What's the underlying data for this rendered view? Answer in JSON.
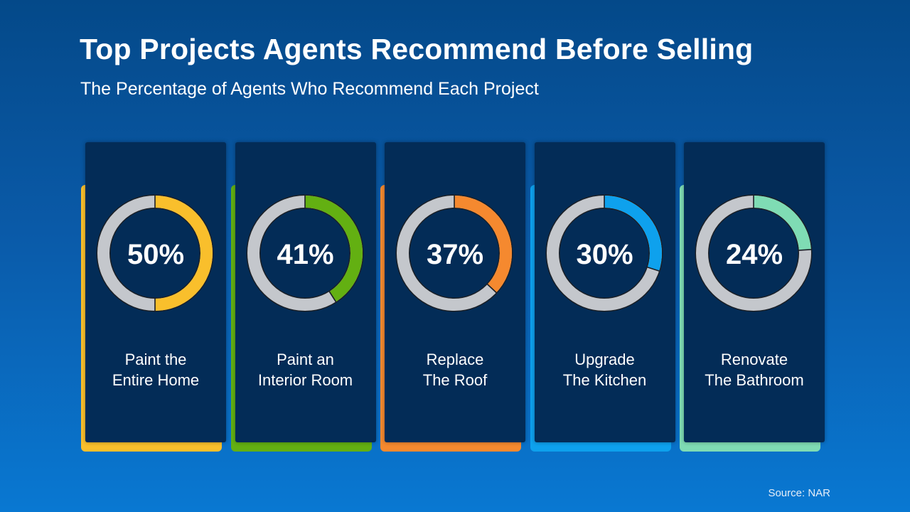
{
  "title": "Top Projects Agents Recommend Before Selling",
  "subtitle": "The Percentage of Agents Who Recommend Each Project",
  "source": "Source: NAR",
  "colors": {
    "track": "#c4c7cc",
    "panel": "#032c57"
  },
  "chart_data": {
    "type": "pie",
    "title": "Top Projects Agents Recommend Before Selling",
    "subtitle": "The Percentage of Agents Who Recommend Each Project",
    "unit": "%",
    "items": [
      {
        "label_line1": "Paint the",
        "label_line2": "Entire Home",
        "value": 50,
        "display": "50%",
        "color": "#f9bf2c"
      },
      {
        "label_line1": "Paint an",
        "label_line2": "Interior Room",
        "value": 41,
        "display": "41%",
        "color": "#63b012"
      },
      {
        "label_line1": "Replace",
        "label_line2": "The Roof",
        "value": 37,
        "display": "37%",
        "color": "#f5892f"
      },
      {
        "label_line1": "Upgrade",
        "label_line2": "The Kitchen",
        "value": 30,
        "display": "30%",
        "color": "#0ea1ed"
      },
      {
        "label_line1": "Renovate",
        "label_line2": "The Bathroom",
        "value": 24,
        "display": "24%",
        "color": "#7fdcb4"
      }
    ]
  }
}
